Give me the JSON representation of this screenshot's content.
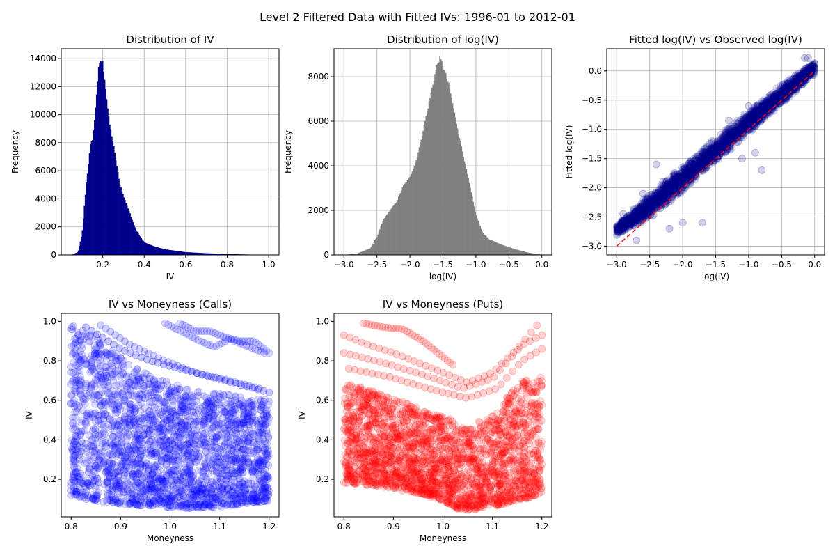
{
  "figure": {
    "suptitle": "Level 2 Filtered Data with Fitted IVs: 1996-01 to 2012-01"
  },
  "chart_data": [
    {
      "id": "iv_hist",
      "type": "bar",
      "title": "Distribution of IV",
      "xlabel": "IV",
      "ylabel": "Frequency",
      "xlim": [
        0.0,
        1.05
      ],
      "ylim": [
        0,
        14700
      ],
      "xticks": [
        0.2,
        0.4,
        0.6,
        0.8,
        1.0
      ],
      "xtick_labels": [
        "0.2",
        "0.4",
        "0.6",
        "0.8",
        "1.0"
      ],
      "yticks": [
        0,
        2000,
        4000,
        6000,
        8000,
        10000,
        12000,
        14000
      ],
      "ytick_labels": [
        "0",
        "2000",
        "4000",
        "6000",
        "8000",
        "10000",
        "12000",
        "14000"
      ],
      "grid": true,
      "color": "#00008b",
      "bin_width": 0.0049,
      "profile_x": [
        0.05,
        0.08,
        0.1,
        0.12,
        0.14,
        0.15,
        0.16,
        0.17,
        0.18,
        0.19,
        0.2,
        0.21,
        0.22,
        0.23,
        0.25,
        0.28,
        0.3,
        0.33,
        0.36,
        0.4,
        0.45,
        0.5,
        0.6,
        0.7,
        0.8,
        0.9,
        1.0
      ],
      "profile_y": [
        0,
        200,
        1500,
        5000,
        7800,
        8200,
        9500,
        11500,
        13300,
        13900,
        13700,
        12500,
        11000,
        9600,
        8000,
        5200,
        4200,
        3000,
        1800,
        900,
        600,
        400,
        200,
        120,
        60,
        30,
        0
      ]
    },
    {
      "id": "logiv_hist",
      "type": "bar",
      "title": "Distribution of log(IV)",
      "xlabel": "log(IV)",
      "ylabel": "Frequency",
      "xlim": [
        -3.15,
        0.15
      ],
      "ylim": [
        0,
        9250
      ],
      "xticks": [
        -3.0,
        -2.5,
        -2.0,
        -1.5,
        -1.0,
        -0.5,
        0.0
      ],
      "xtick_labels": [
        "−3.0",
        "−2.5",
        "−2.0",
        "−1.5",
        "−1.0",
        "−0.5",
        "0.0"
      ],
      "yticks": [
        0,
        2000,
        4000,
        6000,
        8000
      ],
      "ytick_labels": [
        "0",
        "2000",
        "4000",
        "6000",
        "8000"
      ],
      "grid": true,
      "color": "#808080",
      "bin_width": 0.0149,
      "profile_x": [
        -3.0,
        -2.8,
        -2.6,
        -2.5,
        -2.4,
        -2.3,
        -2.2,
        -2.1,
        -2.0,
        -1.9,
        -1.8,
        -1.7,
        -1.6,
        -1.55,
        -1.5,
        -1.4,
        -1.3,
        -1.2,
        -1.1,
        -1.0,
        -0.9,
        -0.8,
        -0.6,
        -0.4,
        -0.2,
        0.0
      ],
      "profile_y": [
        0,
        60,
        300,
        800,
        1600,
        2000,
        2400,
        3100,
        3500,
        4300,
        5600,
        7000,
        8400,
        8850,
        8500,
        7500,
        6000,
        4600,
        3200,
        1800,
        1000,
        700,
        450,
        250,
        100,
        0
      ]
    },
    {
      "id": "fitted_scatter",
      "type": "scatter",
      "title": "Fitted log(IV) vs  Observed log(IV)",
      "xlabel": "log(IV)",
      "ylabel": "Fitted log(IV)",
      "xlim": [
        -3.15,
        0.15
      ],
      "ylim": [
        -3.15,
        0.38
      ],
      "xticks": [
        -3.0,
        -2.5,
        -2.0,
        -1.5,
        -1.0,
        -0.5,
        0.0
      ],
      "xtick_labels": [
        "−3.0",
        "−2.5",
        "−2.0",
        "−1.5",
        "−1.0",
        "−0.5",
        "0.0"
      ],
      "yticks": [
        -3.0,
        -2.5,
        -2.0,
        -1.5,
        -1.0,
        -0.5,
        0.0
      ],
      "ytick_labels": [
        "−3.0",
        "−2.5",
        "−2.0",
        "−1.5",
        "−1.0",
        "−0.5",
        "0.0"
      ],
      "grid": true,
      "color": "#00008b",
      "reference_line": {
        "x": [
          -3.0,
          0.0
        ],
        "y": [
          -3.0,
          0.0
        ],
        "color": "#ff0000",
        "style": "dashed"
      },
      "band_x": [
        -3.0,
        -2.5,
        -2.0,
        -1.5,
        -1.0,
        -0.5,
        0.0
      ],
      "band_center": [
        -2.72,
        -2.32,
        -1.85,
        -1.35,
        -0.88,
        -0.4,
        0.05
      ],
      "band_halfwidth": [
        0.1,
        0.22,
        0.24,
        0.22,
        0.2,
        0.18,
        0.12
      ],
      "outliers": [
        [
          -2.7,
          -2.9
        ],
        [
          -2.3,
          -1.9
        ],
        [
          -1.3,
          -0.85
        ],
        [
          -0.8,
          -1.7
        ],
        [
          -2.0,
          -2.6
        ],
        [
          -1.7,
          -2.6
        ],
        [
          -2.2,
          -2.7
        ],
        [
          -1.0,
          -0.6
        ],
        [
          -1.1,
          -1.5
        ],
        [
          -2.9,
          -2.45
        ],
        [
          -2.6,
          -2.1
        ],
        [
          -0.15,
          0.22
        ],
        [
          -0.1,
          0.22
        ],
        [
          -2.4,
          -1.6
        ],
        [
          -0.6,
          -0.6
        ],
        [
          -0.9,
          -1.4
        ]
      ]
    },
    {
      "id": "calls_scatter",
      "type": "scatter",
      "title": "IV vs Moneyness (Calls)",
      "xlabel": "Moneyness",
      "ylabel": "IV",
      "xlim": [
        0.78,
        1.22
      ],
      "ylim": [
        0.01,
        1.04
      ],
      "xticks": [
        0.8,
        0.9,
        1.0,
        1.1,
        1.2
      ],
      "xtick_labels": [
        "0.8",
        "0.9",
        "1.0",
        "1.1",
        "1.2"
      ],
      "yticks": [
        0.2,
        0.4,
        0.6,
        0.8,
        1.0
      ],
      "ytick_labels": [
        "0.2",
        "0.4",
        "0.6",
        "0.8",
        "1.0"
      ],
      "grid": false,
      "color": "#0000ff",
      "lower_x": [
        0.8,
        0.85,
        0.9,
        0.95,
        1.0,
        1.03,
        1.05,
        1.1,
        1.15,
        1.2
      ],
      "lower_y": [
        0.11,
        0.09,
        0.075,
        0.065,
        0.055,
        0.052,
        0.055,
        0.06,
        0.075,
        0.09
      ],
      "upper_x": [
        0.8,
        0.82,
        0.85,
        0.9,
        0.95,
        1.0,
        1.05,
        1.1,
        1.15,
        1.2
      ],
      "upper_y": [
        0.99,
        0.97,
        0.93,
        0.82,
        0.74,
        0.69,
        0.66,
        0.64,
        0.62,
        0.6
      ],
      "curves": [
        {
          "x": [
            0.99,
            1.03,
            1.06,
            1.09,
            1.12,
            1.15,
            1.19
          ],
          "y": [
            0.99,
            0.94,
            0.9,
            0.87,
            0.91,
            0.88,
            0.84
          ],
          "opacity": 0.15
        },
        {
          "x": [
            1.02,
            1.05,
            1.08,
            1.11,
            1.14,
            1.17,
            1.2
          ],
          "y": [
            0.99,
            0.95,
            0.95,
            0.92,
            0.9,
            0.9,
            0.84
          ],
          "opacity": 0.15
        },
        {
          "x": [
            0.83,
            0.9,
            0.96,
            1.02,
            1.08,
            1.14,
            1.2
          ],
          "y": [
            0.97,
            0.86,
            0.8,
            0.76,
            0.72,
            0.68,
            0.64
          ],
          "opacity": 0.22
        },
        {
          "x": [
            0.86,
            0.92,
            0.98,
            1.05,
            1.12,
            1.18
          ],
          "y": [
            0.98,
            0.88,
            0.81,
            0.74,
            0.7,
            0.66
          ],
          "opacity": 0.18
        }
      ]
    },
    {
      "id": "puts_scatter",
      "type": "scatter",
      "title": "IV vs Moneyness (Puts)",
      "xlabel": "Moneyness",
      "ylabel": "IV",
      "xlim": [
        0.78,
        1.22
      ],
      "ylim": [
        0.01,
        1.04
      ],
      "xticks": [
        0.8,
        0.9,
        1.0,
        1.1,
        1.2
      ],
      "xtick_labels": [
        "0.8",
        "0.9",
        "1.0",
        "1.1",
        "1.2"
      ],
      "yticks": [
        0.2,
        0.4,
        0.6,
        0.8,
        1.0
      ],
      "ytick_labels": [
        "0.2",
        "0.4",
        "0.6",
        "0.8",
        "1.0"
      ],
      "grid": false,
      "color": "#ff0000",
      "lower_x": [
        0.8,
        0.85,
        0.9,
        0.95,
        1.0,
        1.03,
        1.06,
        1.1,
        1.15,
        1.2
      ],
      "lower_y": [
        0.18,
        0.17,
        0.15,
        0.13,
        0.09,
        0.05,
        0.04,
        0.06,
        0.09,
        0.12
      ],
      "upper_x": [
        0.8,
        0.85,
        0.9,
        0.95,
        1.0,
        1.03,
        1.06,
        1.1,
        1.13,
        1.16,
        1.2
      ],
      "upper_y": [
        0.7,
        0.66,
        0.61,
        0.56,
        0.52,
        0.49,
        0.48,
        0.52,
        0.62,
        0.7,
        0.72
      ],
      "curves": [
        {
          "x": [
            0.8,
            0.85,
            0.9,
            0.95,
            1.0,
            1.05,
            1.1,
            1.15,
            1.19
          ],
          "y": [
            0.93,
            0.88,
            0.84,
            0.79,
            0.74,
            0.69,
            0.74,
            0.86,
            0.98
          ],
          "opacity": 0.18
        },
        {
          "x": [
            0.84,
            0.88,
            0.92,
            0.96,
            1.0,
            1.02
          ],
          "y": [
            0.99,
            0.97,
            0.96,
            0.9,
            0.82,
            0.78
          ],
          "opacity": 0.15
        },
        {
          "x": [
            0.8,
            0.88,
            0.96,
            1.04,
            1.1,
            1.16,
            1.2
          ],
          "y": [
            0.84,
            0.79,
            0.73,
            0.66,
            0.71,
            0.88,
            0.93
          ],
          "opacity": 0.18
        },
        {
          "x": [
            0.81,
            0.89,
            0.97,
            1.05,
            1.11,
            1.16,
            1.2
          ],
          "y": [
            0.76,
            0.72,
            0.66,
            0.61,
            0.66,
            0.8,
            0.86
          ],
          "opacity": 0.18
        }
      ]
    }
  ]
}
